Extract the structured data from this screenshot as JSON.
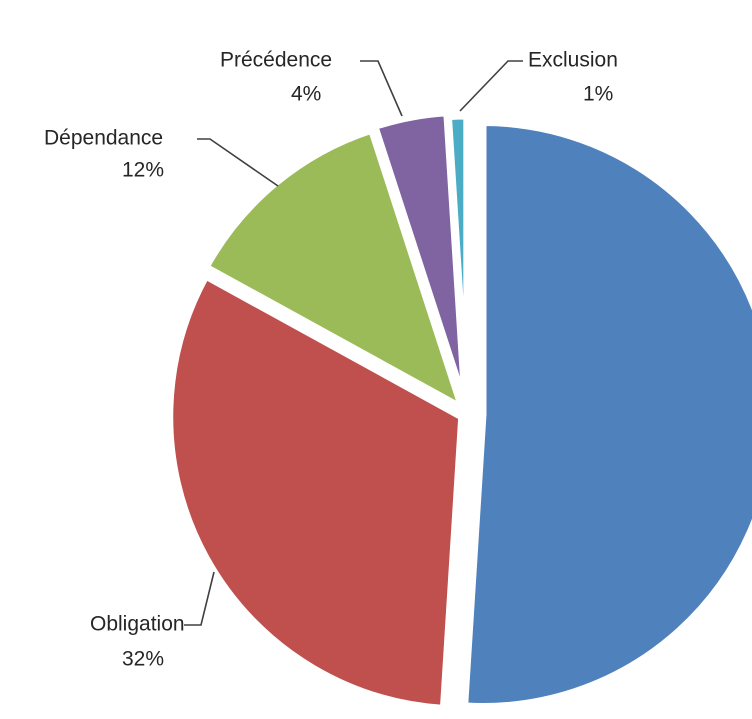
{
  "chart_data": {
    "type": "pie",
    "title": "",
    "legend": "none",
    "slices": [
      {
        "label": "",
        "value": 51,
        "percent_label": "",
        "color": "#4F81BD",
        "visible_label": false
      },
      {
        "label": "Obligation",
        "value": 32,
        "percent_label": "32%",
        "color": "#C0504D",
        "visible_label": true
      },
      {
        "label": "Dépendance",
        "value": 12,
        "percent_label": "12%",
        "color": "#9BBB59",
        "visible_label": true
      },
      {
        "label": "Précédence",
        "value": 4,
        "percent_label": "4%",
        "color": "#8064A2",
        "visible_label": true
      },
      {
        "label": "Exclusion",
        "value": 1,
        "percent_label": "1%",
        "color": "#4BACC6",
        "visible_label": true
      }
    ]
  }
}
